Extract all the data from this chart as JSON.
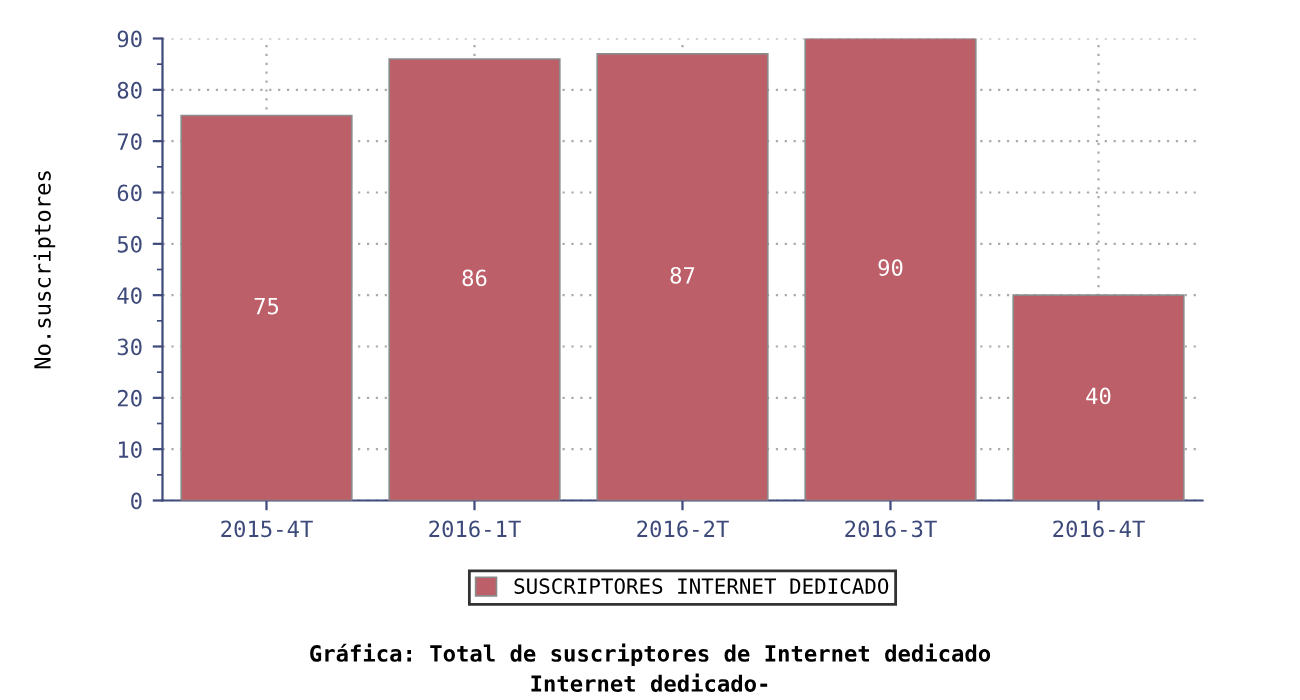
{
  "chart_data": {
    "type": "bar",
    "title": "Gráfica: Total de suscriptores de Internet dedicado",
    "subtitle": "Internet dedicado-",
    "ylabel": "No.suscriptores",
    "categories": [
      "2015-4T",
      "2016-1T",
      "2016-2T",
      "2016-3T",
      "2016-4T"
    ],
    "series": [
      {
        "name": "SUSCRIPTORES INTERNET DEDICADO",
        "color": "#bd5f69",
        "values": [
          75,
          86,
          87,
          90,
          40
        ]
      }
    ],
    "ylim": [
      0,
      90
    ],
    "yticks": [
      0,
      10,
      20,
      30,
      40,
      50,
      60,
      70,
      80,
      90
    ],
    "grid": true,
    "legend": "bottom",
    "data_labels": true
  }
}
